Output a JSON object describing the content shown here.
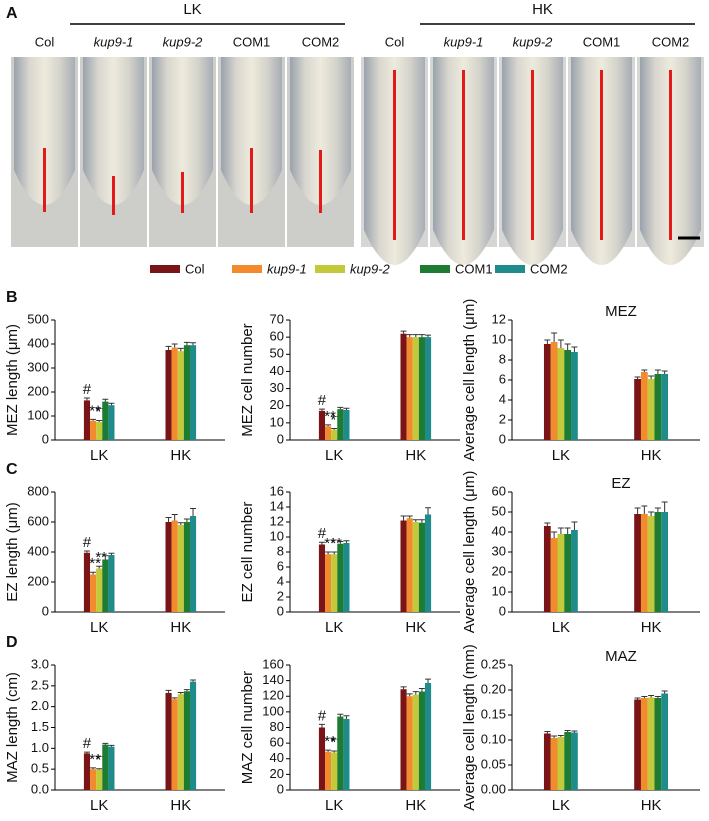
{
  "panel_a": {
    "label": "A",
    "groups": [
      {
        "name": "LK",
        "genotypes": [
          "Col",
          "kup9-1",
          "kup9-2",
          "COM1",
          "COM2"
        ]
      },
      {
        "name": "HK",
        "genotypes": [
          "Col",
          "kup9-1",
          "kup9-2",
          "COM1",
          "COM2"
        ]
      }
    ]
  },
  "row_labels": [
    "B",
    "C",
    "D"
  ],
  "legend": [
    {
      "name": "Col",
      "color": "#7b1416"
    },
    {
      "name": "kup9-1",
      "color": "#f28a2e"
    },
    {
      "name": "kup9-2",
      "color": "#c3c93a"
    },
    {
      "name": "COM1",
      "color": "#1e7b32"
    },
    {
      "name": "COM2",
      "color": "#1f8b8b"
    }
  ],
  "chart_data": [
    {
      "type": "bar",
      "ylabel": "MEZ length (μm)",
      "categories": [
        "LK",
        "HK"
      ],
      "ylim": [
        0,
        500
      ],
      "yticks": [
        0,
        100,
        200,
        300,
        400,
        500
      ],
      "series": [
        {
          "values": [
            165,
            375
          ],
          "errors": [
            10,
            15
          ],
          "annotation": "#"
        },
        {
          "values": [
            80,
            385
          ],
          "errors": [
            6,
            15
          ],
          "annotation": "**"
        },
        {
          "values": [
            75,
            370
          ],
          "errors": [
            6,
            12
          ],
          "annotation": "**"
        },
        {
          "values": [
            160,
            395
          ],
          "errors": [
            10,
            12
          ]
        },
        {
          "values": [
            145,
            395
          ],
          "errors": [
            8,
            10
          ]
        }
      ]
    },
    {
      "type": "bar",
      "ylabel": "MEZ cell number",
      "categories": [
        "LK",
        "HK"
      ],
      "ylim": [
        0,
        70
      ],
      "yticks": [
        0,
        10,
        20,
        30,
        40,
        50,
        60,
        70
      ],
      "series": [
        {
          "values": [
            17,
            62
          ],
          "errors": [
            1,
            1.5
          ],
          "annotation": "#"
        },
        {
          "values": [
            8,
            60
          ],
          "errors": [
            0.8,
            1.5
          ],
          "annotation": "**"
        },
        {
          "values": [
            6,
            60
          ],
          "errors": [
            0.7,
            1.5
          ],
          "annotation": "**"
        },
        {
          "values": [
            18,
            60
          ],
          "errors": [
            1,
            1.5
          ]
        },
        {
          "values": [
            17.5,
            60
          ],
          "errors": [
            1,
            1.2
          ]
        }
      ]
    },
    {
      "type": "bar",
      "title": "MEZ",
      "ylabel": "Average cell length (μm)",
      "categories": [
        "LK",
        "HK"
      ],
      "ylim": [
        0,
        12
      ],
      "yticks": [
        0,
        2,
        4,
        6,
        8,
        10,
        12
      ],
      "series": [
        {
          "values": [
            9.6,
            6.1
          ],
          "errors": [
            0.4,
            0.2
          ]
        },
        {
          "values": [
            9.8,
            6.8
          ],
          "errors": [
            0.9,
            0.2
          ]
        },
        {
          "values": [
            9.2,
            6.1
          ],
          "errors": [
            0.8,
            0.3
          ]
        },
        {
          "values": [
            9.0,
            6.6
          ],
          "errors": [
            0.6,
            0.4
          ]
        },
        {
          "values": [
            8.8,
            6.6
          ],
          "errors": [
            0.5,
            0.3
          ]
        }
      ]
    },
    {
      "type": "bar",
      "ylabel": "EZ length (μm)",
      "categories": [
        "LK",
        "HK"
      ],
      "ylim": [
        0,
        800
      ],
      "yticks": [
        0,
        200,
        400,
        600,
        800
      ],
      "series": [
        {
          "values": [
            395,
            600
          ],
          "errors": [
            12,
            30
          ],
          "annotation": "#"
        },
        {
          "values": [
            250,
            610
          ],
          "errors": [
            15,
            40
          ],
          "annotation": "**"
        },
        {
          "values": [
            290,
            580
          ],
          "errors": [
            15,
            15
          ],
          "annotation": "**"
        },
        {
          "values": [
            350,
            600
          ],
          "errors": [
            25,
            20
          ]
        },
        {
          "values": [
            380,
            640
          ],
          "errors": [
            12,
            50
          ]
        }
      ]
    },
    {
      "type": "bar",
      "ylabel": "EZ cell number",
      "categories": [
        "LK",
        "HK"
      ],
      "ylim": [
        0,
        16
      ],
      "yticks": [
        0,
        2,
        4,
        6,
        8,
        10,
        12,
        14,
        16
      ],
      "series": [
        {
          "values": [
            9.0,
            12.2
          ],
          "errors": [
            0.3,
            0.6
          ],
          "annotation": "#"
        },
        {
          "values": [
            7.7,
            12.5
          ],
          "errors": [
            0.3,
            0.3
          ],
          "annotation": "**"
        },
        {
          "values": [
            7.7,
            12.0
          ],
          "errors": [
            0.3,
            0.3
          ],
          "annotation": "**"
        },
        {
          "values": [
            9.1,
            11.9
          ],
          "errors": [
            0.3,
            0.4
          ]
        },
        {
          "values": [
            9.2,
            13.0
          ],
          "errors": [
            0.3,
            0.9
          ]
        }
      ]
    },
    {
      "type": "bar",
      "title": "EZ",
      "ylabel": "Average cell length (μm)",
      "categories": [
        "LK",
        "HK"
      ],
      "ylim": [
        0,
        60
      ],
      "yticks": [
        0,
        10,
        20,
        30,
        40,
        50,
        60
      ],
      "series": [
        {
          "values": [
            43,
            49
          ],
          "errors": [
            1.5,
            3
          ]
        },
        {
          "values": [
            37,
            49
          ],
          "errors": [
            3,
            4
          ]
        },
        {
          "values": [
            39,
            48
          ],
          "errors": [
            3,
            2
          ]
        },
        {
          "values": [
            39,
            50
          ],
          "errors": [
            3,
            2
          ]
        },
        {
          "values": [
            41,
            50
          ],
          "errors": [
            4,
            5
          ]
        }
      ]
    },
    {
      "type": "bar",
      "ylabel": "MAZ length (cm)",
      "categories": [
        "LK",
        "HK"
      ],
      "ylim": [
        0,
        3
      ],
      "yticks": [
        {
          "value": 0,
          "label": "0.0"
        },
        0.5,
        {
          "value": 1,
          "label": "1.0"
        },
        1.5,
        {
          "value": 2,
          "label": "2.0"
        },
        2.5,
        {
          "value": 3,
          "label": "3.0"
        }
      ],
      "series": [
        {
          "values": [
            0.88,
            2.33
          ],
          "errors": [
            0.03,
            0.06
          ],
          "annotation": "#"
        },
        {
          "values": [
            0.5,
            2.18
          ],
          "errors": [
            0.03,
            0.03
          ],
          "annotation": "**"
        },
        {
          "values": [
            0.49,
            2.3
          ],
          "errors": [
            0.02,
            0.04
          ],
          "annotation": "**"
        },
        {
          "values": [
            1.09,
            2.37
          ],
          "errors": [
            0.03,
            0.04
          ]
        },
        {
          "values": [
            1.04,
            2.6
          ],
          "errors": [
            0.03,
            0.04
          ]
        }
      ]
    },
    {
      "type": "bar",
      "ylabel": "MAZ cell number",
      "categories": [
        "LK",
        "HK"
      ],
      "ylim": [
        0,
        160
      ],
      "yticks": [
        0,
        20,
        40,
        60,
        80,
        100,
        120,
        140,
        160
      ],
      "series": [
        {
          "values": [
            80,
            129
          ],
          "errors": [
            4,
            3
          ],
          "annotation": "#"
        },
        {
          "values": [
            49,
            120
          ],
          "errors": [
            2,
            3
          ],
          "annotation": "**"
        },
        {
          "values": [
            48,
            122
          ],
          "errors": [
            2,
            4
          ],
          "annotation": "**"
        },
        {
          "values": [
            94,
            126
          ],
          "errors": [
            3,
            4
          ]
        },
        {
          "values": [
            91,
            137
          ],
          "errors": [
            4,
            5
          ]
        }
      ]
    },
    {
      "type": "bar",
      "title": "MAZ",
      "ylabel": "Average cell length (mm)",
      "categories": [
        "LK",
        "HK"
      ],
      "ylim": [
        0,
        0.25
      ],
      "yticks": [
        {
          "value": 0,
          "label": "0.00"
        },
        {
          "value": 0.05,
          "label": "0.05"
        },
        {
          "value": 0.1,
          "label": "0.10"
        },
        {
          "value": 0.15,
          "label": "0.15"
        },
        {
          "value": 0.2,
          "label": "0.20"
        },
        {
          "value": 0.25,
          "label": "0.25"
        }
      ],
      "series": [
        {
          "values": [
            0.113,
            0.181
          ],
          "errors": [
            0.004,
            0.003
          ]
        },
        {
          "values": [
            0.104,
            0.184
          ],
          "errors": [
            0.004,
            0.003
          ]
        },
        {
          "values": [
            0.106,
            0.185
          ],
          "errors": [
            0.003,
            0.004
          ]
        },
        {
          "values": [
            0.116,
            0.184
          ],
          "errors": [
            0.003,
            0.003
          ]
        },
        {
          "values": [
            0.115,
            0.193
          ],
          "errors": [
            0.003,
            0.005
          ]
        }
      ]
    }
  ]
}
